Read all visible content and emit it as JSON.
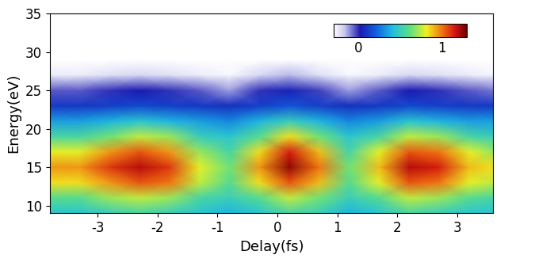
{
  "chart_data": {
    "type": "heatmap",
    "x_label": "Delay(fs)",
    "y_label": "Energy(eV)",
    "xlim": [
      -3.8,
      3.6
    ],
    "xticks": [
      -3,
      -2,
      -1,
      0,
      1,
      2,
      3
    ],
    "ylim": [
      9,
      35
    ],
    "yticks": [
      10,
      15,
      20,
      25,
      30,
      35
    ],
    "x": [
      -3.8,
      -3.3,
      -2.8,
      -2.3,
      -1.8,
      -1.3,
      -0.8,
      -0.3,
      0.2,
      0.7,
      1.2,
      1.7,
      2.2,
      2.7,
      3.2,
      3.6
    ],
    "y": [
      9,
      11,
      13,
      15,
      17,
      19,
      21,
      23,
      25,
      27,
      29,
      31
    ],
    "cells": [
      [
        0.45,
        0.45,
        0.5,
        0.55,
        0.5,
        0.45,
        0.4,
        0.45,
        0.55,
        0.5,
        0.4,
        0.45,
        0.55,
        0.5,
        0.45,
        0.45
      ],
      [
        0.6,
        0.6,
        0.7,
        0.75,
        0.7,
        0.55,
        0.5,
        0.6,
        0.75,
        0.65,
        0.5,
        0.6,
        0.75,
        0.7,
        0.6,
        0.55
      ],
      [
        0.85,
        0.85,
        0.95,
        1.05,
        1.0,
        0.75,
        0.6,
        0.85,
        1.05,
        0.9,
        0.6,
        0.8,
        1.05,
        1.0,
        0.8,
        0.75
      ],
      [
        0.95,
        0.95,
        1.1,
        1.2,
        1.1,
        0.8,
        0.65,
        0.95,
        1.25,
        1.0,
        0.65,
        0.9,
        1.2,
        1.15,
        0.9,
        0.85
      ],
      [
        0.8,
        0.8,
        0.95,
        1.05,
        0.95,
        0.7,
        0.55,
        0.85,
        1.15,
        0.9,
        0.55,
        0.8,
        1.05,
        1.0,
        0.8,
        0.7
      ],
      [
        0.55,
        0.55,
        0.65,
        0.75,
        0.7,
        0.5,
        0.45,
        0.6,
        0.85,
        0.65,
        0.45,
        0.55,
        0.75,
        0.7,
        0.55,
        0.5
      ],
      [
        0.35,
        0.35,
        0.4,
        0.45,
        0.4,
        0.35,
        0.3,
        0.4,
        0.5,
        0.4,
        0.3,
        0.35,
        0.45,
        0.4,
        0.35,
        0.35
      ],
      [
        0.1,
        0.1,
        0.12,
        0.15,
        0.12,
        0.1,
        0.08,
        0.12,
        0.18,
        0.12,
        0.08,
        0.1,
        0.15,
        0.12,
        0.1,
        0.1
      ],
      [
        -0.05,
        -0.05,
        0.0,
        0.02,
        0.0,
        -0.05,
        -0.12,
        0.0,
        0.05,
        -0.02,
        -0.12,
        -0.05,
        0.02,
        0.0,
        -0.05,
        -0.08
      ],
      [
        -0.25,
        -0.25,
        -0.22,
        -0.2,
        -0.22,
        -0.25,
        -0.28,
        -0.2,
        -0.15,
        -0.22,
        -0.28,
        -0.25,
        -0.2,
        -0.22,
        -0.25,
        -0.27
      ],
      [
        -0.3,
        -0.3,
        -0.3,
        -0.3,
        -0.3,
        -0.3,
        -0.3,
        -0.3,
        -0.3,
        -0.3,
        -0.3,
        -0.3,
        -0.3,
        -0.3,
        -0.3,
        -0.3
      ],
      [
        -0.3,
        -0.3,
        -0.3,
        -0.3,
        -0.3,
        -0.3,
        -0.3,
        -0.3,
        -0.3,
        -0.3,
        -0.3,
        -0.3,
        -0.3,
        -0.3,
        -0.3,
        -0.3
      ]
    ],
    "colorbar_range": [
      -0.3,
      1.3
    ],
    "colorbar_ticks": [
      0,
      1
    ]
  }
}
